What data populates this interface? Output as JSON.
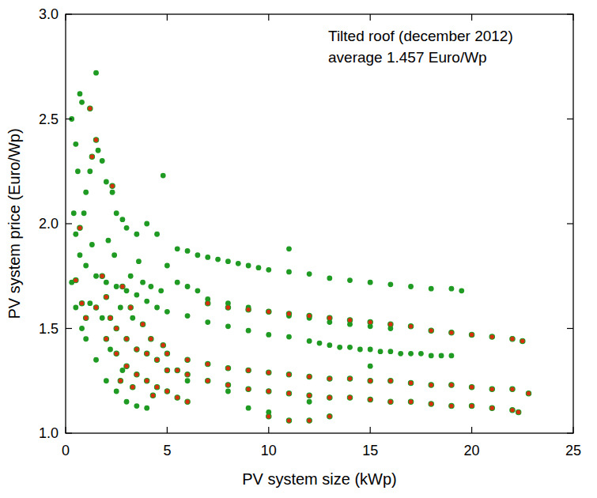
{
  "chart_data": {
    "type": "scatter",
    "annotations": [
      "Tilted roof (december 2012)",
      "average 1.457 Euro/Wp"
    ],
    "x_label": "PV system size (kWp)",
    "y_label": "PV system price (Euro/Wp)",
    "xlim": [
      0,
      25
    ],
    "xticks": [
      0,
      5,
      10,
      15,
      20,
      25
    ],
    "ylim": [
      1,
      3
    ],
    "yticks": [
      {
        "value": 1,
        "label": "1.0"
      },
      {
        "value": 1.5,
        "label": "1.5"
      },
      {
        "value": 2,
        "label": "2.0"
      },
      {
        "value": 2.5,
        "label": "2.5"
      },
      {
        "value": 3,
        "label": "3.0"
      }
    ],
    "grid": false,
    "series": [
      {
        "color": "#1f9a22",
        "marker": "circle",
        "x": [
          5.5,
          6,
          6.5,
          7,
          7.5,
          8,
          8.5,
          9,
          9.5,
          10,
          11,
          12,
          13,
          14,
          15,
          16,
          17,
          18,
          19,
          19.5,
          11,
          6,
          7,
          8,
          9,
          10,
          11,
          12,
          13,
          14,
          15,
          16,
          17,
          18,
          19,
          12.5,
          13.5,
          14.5,
          15.5,
          16.5,
          17.5,
          18.5,
          7,
          8,
          9,
          10,
          11,
          12,
          13,
          14,
          15,
          16,
          0.3,
          0.5,
          0.7,
          0.8,
          1.5,
          1.2,
          1.0,
          0.9,
          1.6,
          1.8,
          2,
          2.3,
          2.5,
          2.8,
          3,
          3.5,
          4,
          4.5,
          4.8,
          0.5,
          0.7,
          1,
          1.3,
          1.5,
          2,
          2.5,
          3,
          3.5,
          4,
          4.5,
          5,
          3.2,
          3.8,
          4.2,
          4.7,
          0.3,
          0.5,
          0.8,
          1,
          1.5,
          2,
          2.5,
          3,
          3.5,
          4,
          2.2,
          2.8,
          3.3,
          2.7,
          1.8,
          1.2,
          0.4,
          0.6,
          2.4,
          3.6,
          5.5,
          6,
          5,
          6.5,
          2.1,
          6,
          8,
          10,
          12,
          15,
          9
        ],
        "values": [
          1.88,
          1.87,
          1.85,
          1.84,
          1.83,
          1.82,
          1.81,
          1.8,
          1.79,
          1.78,
          1.77,
          1.76,
          1.74,
          1.73,
          1.72,
          1.71,
          1.7,
          1.69,
          1.69,
          1.68,
          1.88,
          1.56,
          1.53,
          1.51,
          1.49,
          1.47,
          1.46,
          1.44,
          1.42,
          1.41,
          1.4,
          1.39,
          1.38,
          1.37,
          1.37,
          1.43,
          1.41,
          1.4,
          1.39,
          1.38,
          1.38,
          1.37,
          1.64,
          1.62,
          1.6,
          1.58,
          1.56,
          1.55,
          1.53,
          1.52,
          1.51,
          1.5,
          2.5,
          2.38,
          2.62,
          2.58,
          2.72,
          2.25,
          2.15,
          2.05,
          2.35,
          2.3,
          2.2,
          2.15,
          2.05,
          2.02,
          1.98,
          1.95,
          2.0,
          1.95,
          2.23,
          1.95,
          1.85,
          1.8,
          1.9,
          1.75,
          1.72,
          1.7,
          1.68,
          1.66,
          1.63,
          1.6,
          1.58,
          1.75,
          1.72,
          1.7,
          1.68,
          1.72,
          1.6,
          1.5,
          1.45,
          1.35,
          1.25,
          1.2,
          1.15,
          1.13,
          1.12,
          1.4,
          1.3,
          1.55,
          1.6,
          1.55,
          1.62,
          2.05,
          2.25,
          1.85,
          1.82,
          1.72,
          1.7,
          1.8,
          1.68,
          1.92,
          1.25,
          1.2,
          1.1,
          1.15,
          1.32,
          1.12
        ]
      },
      {
        "color": "#d8300f",
        "marker": "circle",
        "x": [
          7,
          8,
          9,
          10,
          11,
          12,
          13,
          14,
          15,
          16,
          17,
          18,
          19,
          20,
          21,
          22,
          22.5,
          5,
          6,
          7,
          8,
          9,
          10,
          11,
          12,
          13,
          14,
          15,
          16,
          17,
          18,
          19,
          20,
          21,
          22,
          22.8,
          6,
          7,
          8,
          9,
          10,
          11,
          12,
          13,
          14,
          15,
          16,
          17,
          18,
          19,
          20,
          21,
          22,
          22.3,
          10,
          11,
          12,
          13,
          0.5,
          0.7,
          1.2,
          1.5,
          1.3,
          2.3,
          0.8,
          1,
          1.5,
          2,
          2.5,
          3,
          3.5,
          4,
          4.5,
          5,
          2,
          2.5,
          3,
          3.5,
          4,
          4.5,
          5,
          5.5,
          6,
          2.8,
          3.2,
          1.8,
          3.8,
          4.2,
          2.2,
          4.8,
          5.5,
          3.3,
          2.7,
          4.3
        ],
        "values": [
          1.62,
          1.6,
          1.59,
          1.58,
          1.57,
          1.56,
          1.55,
          1.54,
          1.53,
          1.52,
          1.51,
          1.49,
          1.48,
          1.47,
          1.46,
          1.45,
          1.44,
          1.38,
          1.35,
          1.33,
          1.31,
          1.3,
          1.29,
          1.28,
          1.27,
          1.26,
          1.26,
          1.25,
          1.25,
          1.24,
          1.23,
          1.23,
          1.22,
          1.21,
          1.21,
          1.19,
          1.28,
          1.25,
          1.23,
          1.21,
          1.2,
          1.19,
          1.18,
          1.17,
          1.17,
          1.16,
          1.15,
          1.15,
          1.14,
          1.13,
          1.13,
          1.12,
          1.11,
          1.1,
          1.08,
          1.06,
          1.06,
          1.08,
          1.73,
          1.98,
          2.55,
          2.4,
          2.32,
          2.18,
          1.62,
          1.55,
          1.6,
          1.65,
          1.5,
          1.45,
          1.4,
          1.38,
          1.35,
          1.3,
          1.45,
          1.38,
          1.32,
          1.28,
          1.25,
          1.22,
          1.2,
          1.17,
          1.15,
          1.7,
          1.6,
          1.75,
          1.52,
          1.45,
          1.55,
          1.42,
          1.3,
          1.22,
          1.25,
          1.18
        ]
      }
    ]
  }
}
